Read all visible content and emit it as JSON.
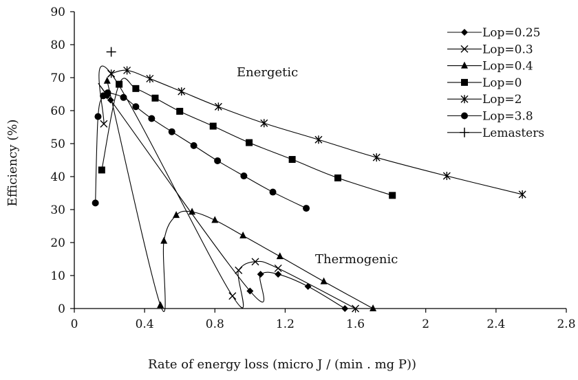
{
  "chart_data": {
    "type": "scatter",
    "title": "",
    "xlabel": "Rate of energy loss (micro J / (min . mg P))",
    "ylabel": "Efficiency (%)",
    "xlim": [
      0,
      2.8
    ],
    "ylim": [
      0,
      90
    ],
    "x_ticks": [
      0,
      0.4,
      0.8,
      1.2,
      1.6,
      2,
      2.4,
      2.8
    ],
    "x_tick_labels": [
      "0",
      "0.4",
      "0.8",
      "1.2",
      "1.6",
      "2",
      "2.4",
      "2.8"
    ],
    "y_ticks": [
      0,
      10,
      20,
      30,
      40,
      50,
      60,
      70,
      80,
      90
    ],
    "y_tick_labels": [
      "0",
      "10",
      "20",
      "30",
      "40",
      "50",
      "60",
      "70",
      "80",
      "90"
    ],
    "grid": false,
    "legend_position": "top-right",
    "annotations": [
      "Energetic",
      "Thermogenic"
    ],
    "series": [
      {
        "name": "Lop=0.25",
        "marker": "diamond",
        "line": true,
        "x": [
          0.187,
          0.207,
          1.0,
          1.06,
          1.16,
          1.33,
          1.54
        ],
        "y": [
          64.5,
          63.2,
          5.3,
          10.4,
          10.4,
          6.7,
          0
        ]
      },
      {
        "name": "Lop=0.3",
        "marker": "x",
        "line": true,
        "x": [
          0.168,
          0.21,
          0.9,
          0.935,
          1.03,
          1.16,
          1.6
        ],
        "y": [
          56,
          71.2,
          3.8,
          11.6,
          14.2,
          12.2,
          0
        ]
      },
      {
        "name": "Lop=0.4",
        "marker": "triangle",
        "line": true,
        "x": [
          0.187,
          0.49,
          0.51,
          0.58,
          0.67,
          0.8,
          0.96,
          1.17,
          1.42,
          1.7
        ],
        "y": [
          69,
          1,
          20.5,
          28.3,
          29.3,
          26.8,
          22.1,
          15.8,
          8.2,
          0
        ]
      },
      {
        "name": "Lop=0",
        "marker": "square",
        "line": true,
        "x": [
          0.156,
          0.255,
          0.35,
          0.46,
          0.6,
          0.79,
          0.995,
          1.24,
          1.5,
          1.81
        ],
        "y": [
          42,
          68,
          66.7,
          63.8,
          59.8,
          55.3,
          50.3,
          45.2,
          39.6,
          34.3
        ]
      },
      {
        "name": "Lop=2",
        "marker": "asterisk",
        "line": true,
        "x": [
          0.21,
          0.3,
          0.43,
          0.61,
          0.82,
          1.08,
          1.39,
          1.72,
          2.12,
          2.55
        ],
        "y": [
          71.2,
          72.2,
          69.7,
          65.8,
          61.2,
          56.2,
          51.2,
          45.8,
          40.2,
          34.6
        ]
      },
      {
        "name": "Lop=3.8",
        "marker": "circle",
        "line": true,
        "x": [
          0.12,
          0.135,
          0.165,
          0.19,
          0.28,
          0.35,
          0.44,
          0.555,
          0.68,
          0.815,
          0.965,
          1.13,
          1.32
        ],
        "y": [
          32,
          58.2,
          64.5,
          65.4,
          64,
          61.2,
          57.6,
          53.6,
          49.4,
          44.8,
          40.2,
          35.3,
          30.4
        ]
      },
      {
        "name": "Lemasters",
        "marker": "plus",
        "line": false,
        "x": [
          0.21
        ],
        "y": [
          77.8
        ]
      }
    ]
  }
}
